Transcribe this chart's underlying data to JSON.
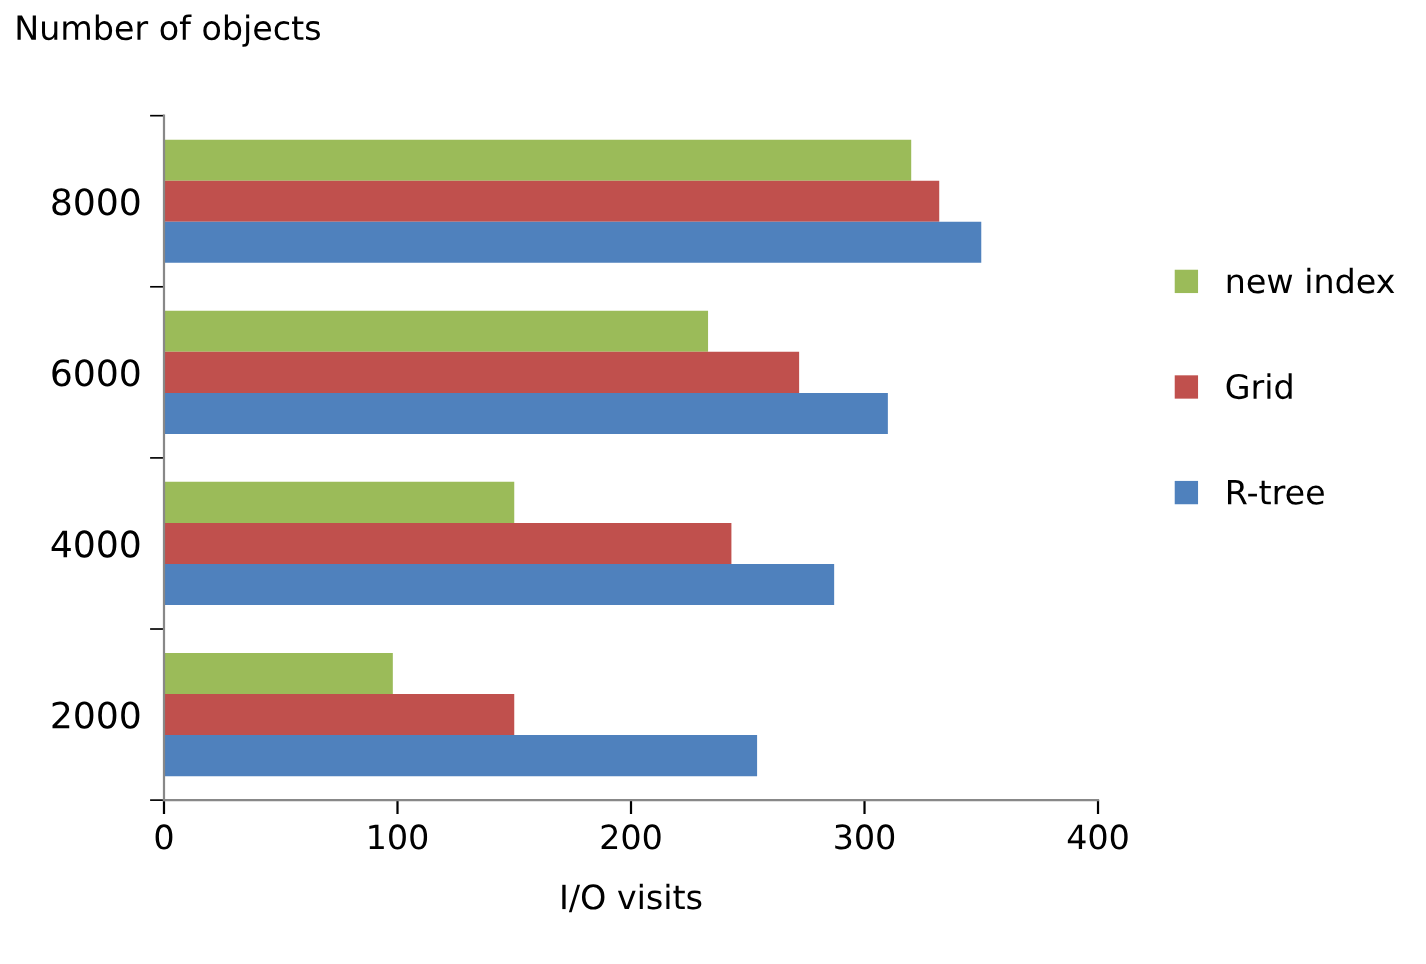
{
  "chart_data": {
    "type": "bar",
    "orientation": "horizontal",
    "xlabel": "I/O visits",
    "ylabel": "Number of objects",
    "categories": [
      "8000",
      "6000",
      "4000",
      "2000"
    ],
    "series": [
      {
        "name": "new index",
        "color": "#9bbb59",
        "values": [
          320,
          233,
          150,
          98
        ]
      },
      {
        "name": "Grid",
        "color": "#c0504d",
        "values": [
          332,
          272,
          243,
          150
        ]
      },
      {
        "name": "R-tree",
        "color": "#4f81bd",
        "values": [
          350,
          310,
          287,
          254
        ]
      }
    ],
    "xlim": [
      0,
      400
    ],
    "xticks": [
      0,
      100,
      200,
      300,
      400
    ],
    "grid": false,
    "legend": "right"
  }
}
